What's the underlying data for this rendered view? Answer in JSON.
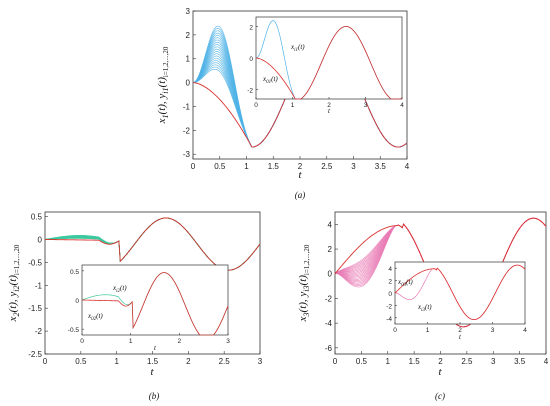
{
  "chart_data": [
    {
      "id": "a",
      "type": "line",
      "caption": "(a)",
      "xlabel": "t",
      "ylabel": "x_{1}(t), y_{i1}(t) i=1,2,...,20",
      "ylabel_main": "x",
      "ylabel_sub1": "1",
      "ylabel_mid": "(t), y",
      "ylabel_sub2": "i1",
      "ylabel_tail": "(t)",
      "ylabel_idx": "i=1,2,...,20",
      "xlim": [
        0,
        4
      ],
      "ylim": [
        -3.2,
        3
      ],
      "xticks": [
        "0",
        "0.5",
        "1",
        "1.5",
        "2",
        "2.5",
        "3",
        "3.5",
        "4"
      ],
      "yticks": [
        "3",
        "2",
        "1",
        "0",
        "-1",
        "-2",
        "-3"
      ],
      "leader_color": "#d9302c",
      "follower_color": "#4fb3e6",
      "inset": {
        "xlim": [
          0,
          4
        ],
        "ylim": [
          -2.6,
          2.6
        ],
        "xticks": [
          "0",
          "1",
          "2",
          "3",
          "4"
        ],
        "yticks": [
          "2",
          "0",
          "-2"
        ],
        "xlabel": "t",
        "label_follower": "x_{i1}(t)",
        "label_follower_main": "x",
        "label_follower_sub": "i1",
        "label_follower_tail": "(t)",
        "label_leader": "x_{01}(t)",
        "label_leader_main": "x",
        "label_leader_sub": "01",
        "label_leader_tail": "(t)"
      }
    },
    {
      "id": "b",
      "type": "line",
      "caption": "(b)",
      "xlabel": "t",
      "ylabel": "x_{2}(t), y_{i2}(t) i=1,2,...,20",
      "ylabel_main": "x",
      "ylabel_sub1": "2",
      "ylabel_mid": "(t), y",
      "ylabel_sub2": "i2",
      "ylabel_tail": "(t)",
      "ylabel_idx": "i=1,2,...,20",
      "xlim": [
        0,
        3
      ],
      "ylim": [
        -2.5,
        0.6
      ],
      "xticks": [
        "0",
        "0.5",
        "1",
        "1.5",
        "2",
        "2.5",
        "3"
      ],
      "yticks": [
        "0.5",
        "0",
        "-0.5",
        "-1",
        "-1.5",
        "-2",
        "-2.5"
      ],
      "leader_color": "#d9302c",
      "follower_color": "#3ec9a0",
      "inset": {
        "xlim": [
          0,
          3
        ],
        "ylim": [
          -0.6,
          0.6
        ],
        "xticks": [
          "0",
          "1",
          "2",
          "3"
        ],
        "yticks": [
          "0.5",
          "0",
          "-0.5"
        ],
        "xlabel": "t",
        "label_follower": "x_{i2}(t)",
        "label_follower_main": "x",
        "label_follower_sub": "i2",
        "label_follower_tail": "(t)",
        "label_leader": "x_{02}(t)",
        "label_leader_main": "x",
        "label_leader_sub": "02",
        "label_leader_tail": "(t)"
      }
    },
    {
      "id": "c",
      "type": "line",
      "caption": "(c)",
      "xlabel": "t",
      "ylabel": "x_{3}(t), y_{i3}(t) i=1,2,...,20",
      "ylabel_main": "x",
      "ylabel_sub1": "3",
      "ylabel_mid": "(t), y",
      "ylabel_sub2": "i3",
      "ylabel_tail": "(t)",
      "ylabel_idx": "i=1,2,...,20",
      "xlim": [
        0,
        4
      ],
      "ylim": [
        -6.5,
        5
      ],
      "xticks": [
        "0",
        "0.5",
        "1",
        "1.5",
        "2",
        "2.5",
        "3",
        "3.5",
        "4"
      ],
      "yticks": [
        "4",
        "2",
        "0",
        "-2",
        "-4",
        "-6"
      ],
      "leader_color": "#d9302c",
      "follower_color": "#e97bb5",
      "inset": {
        "xlim": [
          0,
          4
        ],
        "ylim": [
          -5,
          5
        ],
        "xticks": [
          "0",
          "1",
          "2",
          "3",
          "4"
        ],
        "yticks": [
          "4",
          "2",
          "0",
          "-2",
          "-4"
        ],
        "xlabel": "t",
        "label_follower": "x_{i3}(t)",
        "label_follower_main": "x",
        "label_follower_sub": "i3",
        "label_follower_tail": "(t)",
        "label_leader": "x_{03}(t)",
        "label_leader_main": "x",
        "label_leader_sub": "03",
        "label_leader_tail": "(t)"
      }
    }
  ]
}
